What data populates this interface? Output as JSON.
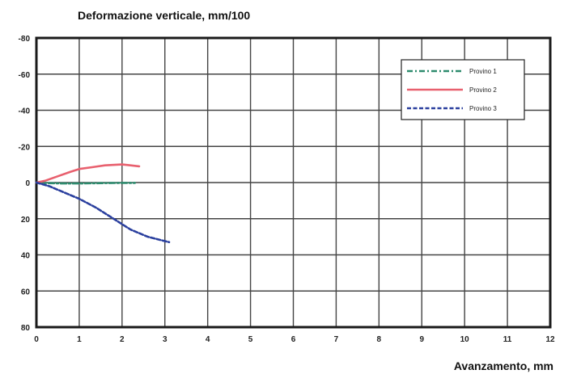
{
  "chart_data": {
    "type": "line",
    "title": "Deformazione verticale, mm/100",
    "xlabel": "Avanzamento, mm",
    "ylabel": "",
    "xlim": [
      0,
      12
    ],
    "ylim": [
      -80,
      80
    ],
    "y_inverted": true,
    "x_ticks": [
      "0",
      "1",
      "2",
      "3",
      "4",
      "5",
      "6",
      "7",
      "8",
      "9",
      "10",
      "11",
      "12"
    ],
    "y_ticks": [
      {
        "v": -80,
        "label": "-80"
      },
      {
        "v": -60,
        "label": "-60"
      },
      {
        "v": -40,
        "label": "-40"
      },
      {
        "v": -20,
        "label": "-20"
      },
      {
        "v": 0,
        "label": "0"
      },
      {
        "v": 20,
        "label": "20"
      },
      {
        "v": 40,
        "label": "40"
      },
      {
        "v": 60,
        "label": "60"
      },
      {
        "v": 80,
        "label": "80"
      }
    ],
    "grid": true,
    "legend_position": "top-right",
    "series": [
      {
        "name": "Provino 1",
        "color": "#2e8b6e",
        "dash": "dashdot",
        "x": [
          0,
          0.3,
          0.6,
          1.0,
          1.5,
          2.0,
          2.3
        ],
        "y": [
          0,
          0.3,
          0.5,
          0.5,
          0.3,
          0.2,
          0.2
        ]
      },
      {
        "name": "Provino 2",
        "color": "#e8606e",
        "dash": "solid",
        "x": [
          0,
          0.2,
          0.5,
          0.8,
          1.0,
          1.3,
          1.6,
          2.0,
          2.2,
          2.4
        ],
        "y": [
          0,
          -1,
          -3.5,
          -6,
          -7.5,
          -8.5,
          -9.5,
          -10,
          -9.5,
          -9
        ]
      },
      {
        "name": "Provino 3",
        "color": "#2a3f9e",
        "dash": "dashed",
        "x": [
          0,
          0.3,
          0.6,
          1.0,
          1.4,
          1.8,
          2.2,
          2.6,
          3.1
        ],
        "y": [
          0,
          2,
          5,
          9,
          14,
          20,
          26,
          30,
          33
        ]
      }
    ]
  }
}
